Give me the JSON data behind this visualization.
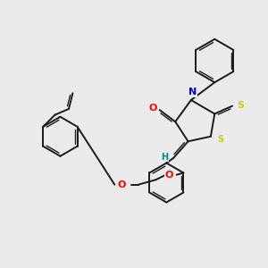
{
  "bg_color": "#ebebeb",
  "bond_color": "#1a1a1a",
  "atom_colors": {
    "O": "#ff0000",
    "N": "#0000cd",
    "S_yellow": "#cccc00",
    "S_ring": "#cccc00",
    "H": "#008b8b"
  },
  "lw_single": 1.4,
  "lw_double_inner": 1.0
}
